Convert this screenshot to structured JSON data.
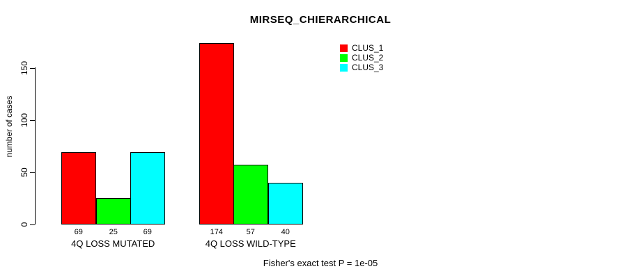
{
  "title": "MIRSEQ_CHIERARCHICAL",
  "footer": "Fisher's exact test P = 1e-05",
  "colors": {
    "background": "#FFFFFF",
    "axis": "#000000",
    "text": "#000000",
    "clus_1": "#FF0000",
    "clus_2": "#00FF00",
    "clus_3": "#00FFFF"
  },
  "chart_data": {
    "type": "bar",
    "title": "MIRSEQ_CHIERARCHICAL",
    "xlabel": "",
    "ylabel": "number of cases",
    "ylim": [
      0,
      180
    ],
    "yticks": [
      0,
      50,
      100,
      150
    ],
    "grid": false,
    "legend_position": "top-right",
    "bar_value_labels_shown": true,
    "categories": [
      "4Q LOSS MUTATED",
      "4Q LOSS WILD-TYPE"
    ],
    "series": [
      {
        "name": "CLUS_1",
        "color": "#FF0000",
        "values": [
          69,
          174
        ]
      },
      {
        "name": "CLUS_2",
        "color": "#00FF00",
        "values": [
          25,
          57
        ]
      },
      {
        "name": "CLUS_3",
        "color": "#00FFFF",
        "values": [
          69,
          40
        ]
      }
    ],
    "annotation": "Fisher's exact test P = 1e-05"
  }
}
